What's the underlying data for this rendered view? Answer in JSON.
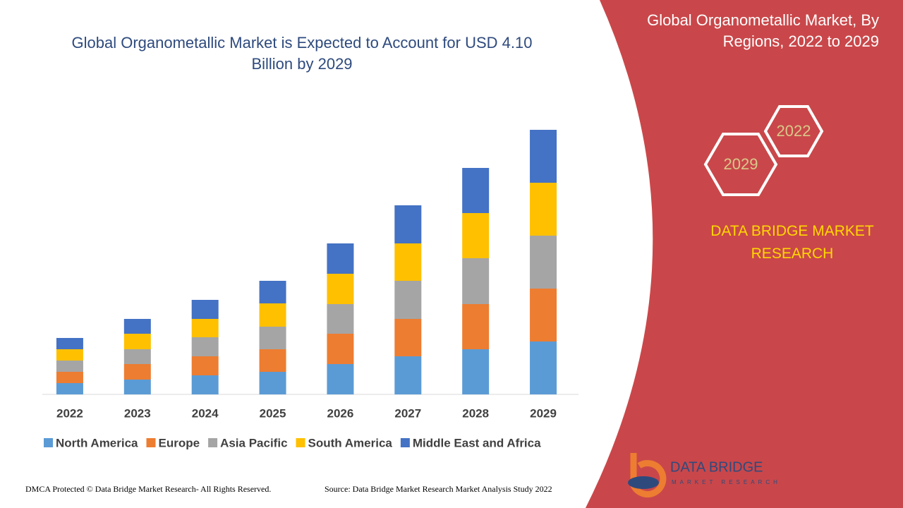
{
  "chart_data": {
    "type": "stacked-bar",
    "title": "Global Organometallic Market is Expected to Account for USD 4.10 Billion by 2029",
    "categories": [
      "2022",
      "2023",
      "2024",
      "2025",
      "2026",
      "2027",
      "2028",
      "2029"
    ],
    "series": [
      {
        "name": "North America",
        "color": "#5b9bd5",
        "values": [
          16,
          21,
          27,
          32,
          43,
          54,
          64,
          75
        ]
      },
      {
        "name": "Europe",
        "color": "#ed7d31",
        "values": [
          16,
          22,
          27,
          32,
          43,
          53,
          64,
          75
        ]
      },
      {
        "name": "Asia Pacific",
        "color": "#a5a5a5",
        "values": [
          16,
          21,
          27,
          32,
          42,
          54,
          65,
          75
        ]
      },
      {
        "name": "South America",
        "color": "#ffc000",
        "values": [
          16,
          22,
          26,
          33,
          43,
          53,
          64,
          75
        ]
      },
      {
        "name": "Middle East and Africa",
        "color": "#4472c4",
        "values": [
          16,
          21,
          27,
          32,
          43,
          54,
          64,
          75
        ]
      }
    ]
  },
  "side_panel": {
    "title": "Global Organometallic Market, By Regions, 2022 to 2029",
    "hex_years": [
      "2022",
      "2029"
    ],
    "brand": "DATA BRIDGE MARKET RESEARCH"
  },
  "logo": {
    "name": "DATA BRIDGE",
    "tagline": "MARKET RESEARCH"
  },
  "footer": {
    "left": "DMCA Protected © Data Bridge Market Research- All Rights Reserved.",
    "right": "Source: Data Bridge Market Research Market Analysis Study 2022"
  }
}
